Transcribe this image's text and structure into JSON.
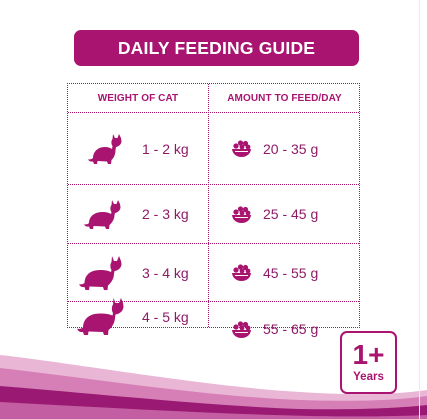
{
  "title": "DAILY FEEDING GUIDE",
  "table": {
    "headers": {
      "weight": "WEIGHT OF CAT",
      "amount": "AMOUNT TO FEED/DAY"
    },
    "rows": [
      {
        "weight": "1 - 2 kg",
        "amount": "20 - 35 g",
        "cat_icon": "cat-small-icon"
      },
      {
        "weight": "2 - 3 kg",
        "amount": "25 - 45 g",
        "cat_icon": "cat-medium-icon"
      },
      {
        "weight": "3 - 4 kg",
        "amount": "45 - 55 g",
        "cat_icon": "cat-large-icon"
      },
      {
        "weight": "4 - 5 kg",
        "amount": "55 - 65 g",
        "cat_icon": "cat-xlarge-icon"
      }
    ],
    "amount_icon": "food-bowl-icon"
  },
  "badge": {
    "number": "1+",
    "label": "Years"
  },
  "colors": {
    "accent": "#a8146f",
    "text": "#8e1a66",
    "wave_light": "#d67fb6",
    "wave_dark": "#9a1a73"
  }
}
